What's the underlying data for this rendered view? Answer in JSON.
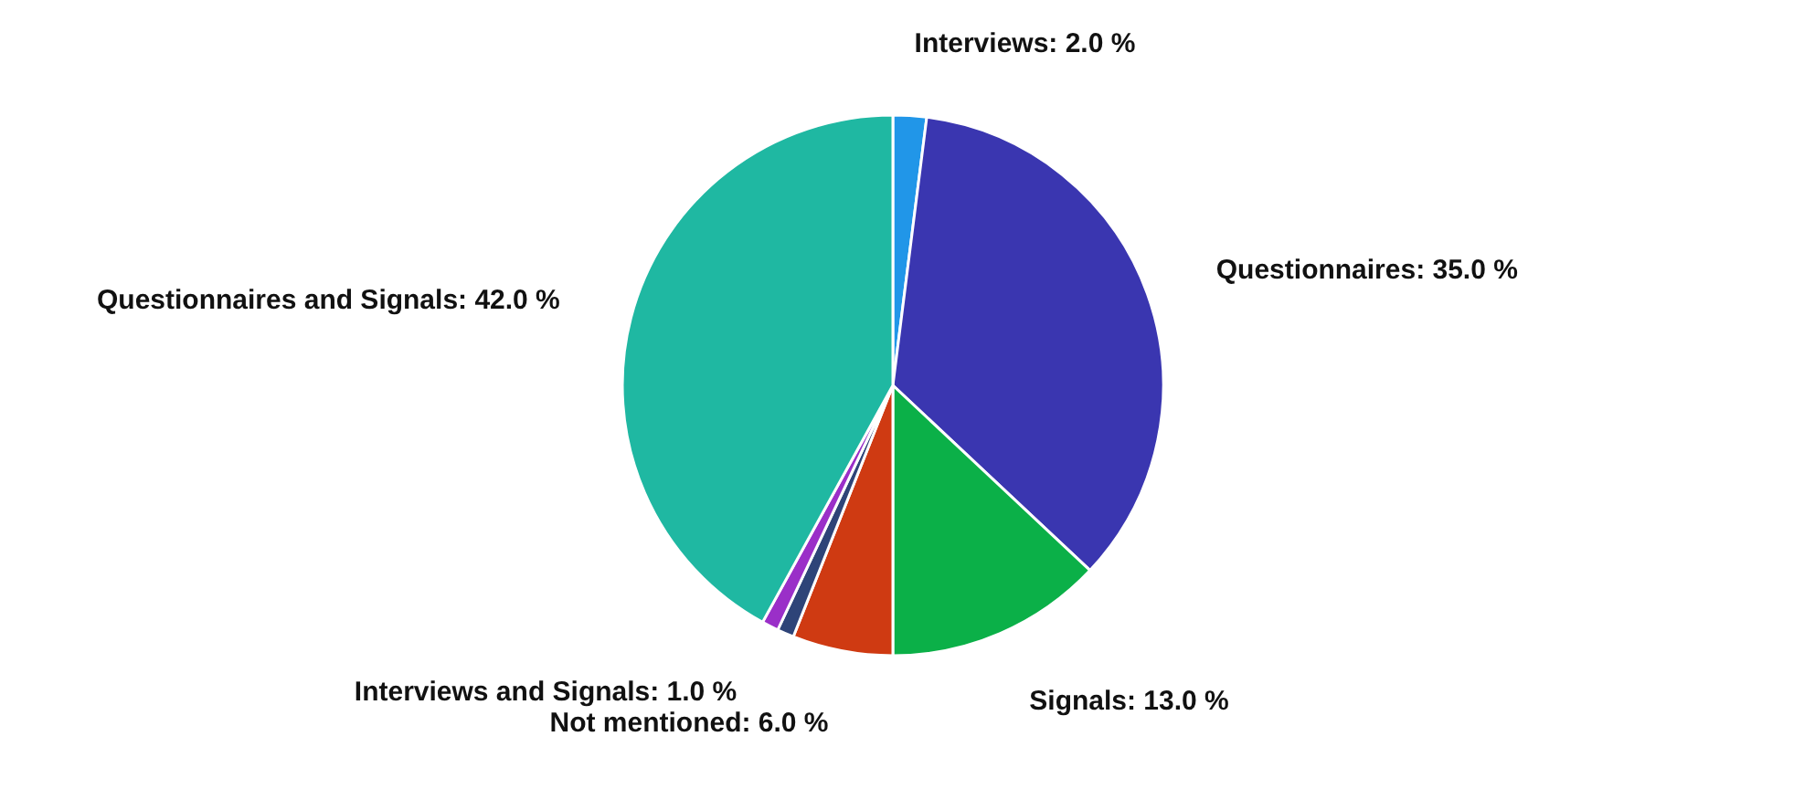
{
  "chart_data": {
    "type": "pie",
    "categories": [
      "Interviews",
      "Questionnaires",
      "Signals",
      "Not mentioned",
      null,
      "Interviews and Signals",
      "Questionnaires and Signals"
    ],
    "values": [
      2.0,
      35.0,
      13.0,
      6.0,
      1.0,
      1.0,
      42.0
    ],
    "colors": [
      "#2196e8",
      "#3a36b0",
      "#0bb048",
      "#cf3a12",
      "#2e4478",
      "#9a2fc8",
      "#1fb8a2"
    ],
    "value_labels": [
      "2.0 %",
      "35.0 %",
      "13.0 %",
      "6.0 %",
      null,
      "1.0 %",
      "42.0 %"
    ]
  }
}
